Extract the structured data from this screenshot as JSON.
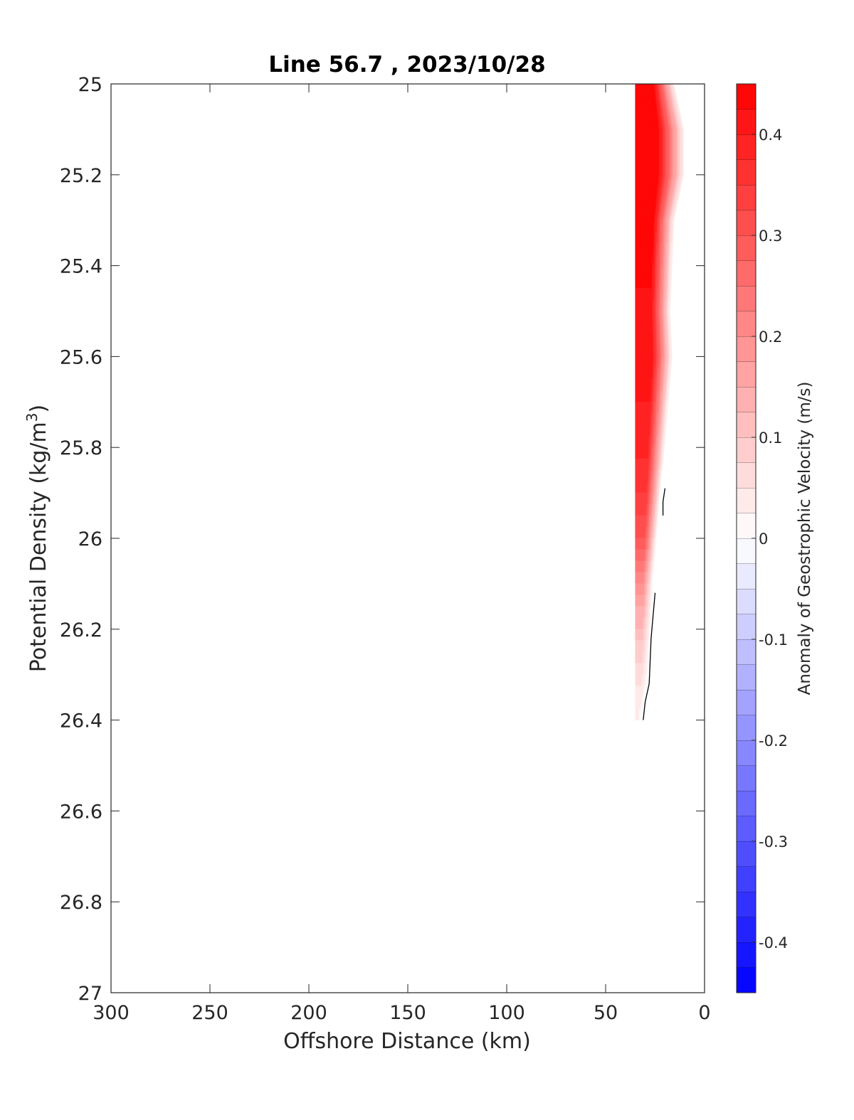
{
  "chart_data": {
    "type": "heatmap",
    "title": "Line 56.7 , 2023/10/28",
    "xlabel": "Offshore Distance (km)",
    "ylabel_main": "Potential Density (kg/m",
    "ylabel_sup": "3",
    "ylabel_close": ")",
    "xlim": [
      300,
      0
    ],
    "x_reversed": true,
    "ylim": [
      25,
      27
    ],
    "y_reversed": true,
    "x_ticks": [
      "300",
      "250",
      "200",
      "150",
      "100",
      "50",
      "0"
    ],
    "x_tick_values": [
      300,
      250,
      200,
      150,
      100,
      50,
      0
    ],
    "y_ticks": [
      "25",
      "25.2",
      "25.4",
      "25.6",
      "25.8",
      "26",
      "26.2",
      "26.4",
      "26.6",
      "26.8",
      "27"
    ],
    "y_tick_values": [
      25,
      25.2,
      25.4,
      25.6,
      25.8,
      26,
      26.2,
      26.4,
      26.6,
      26.8,
      27
    ],
    "colorbar": {
      "label": "Anomaly of Geostrophic Velocity (m/s)",
      "range": [
        -0.45,
        0.45
      ],
      "levels": 36,
      "ticks": [
        "0.4",
        "0.3",
        "0.2",
        "0.1",
        "0",
        "-0.1",
        "-0.2",
        "-0.3",
        "-0.4"
      ],
      "tick_values": [
        0.4,
        0.3,
        0.2,
        0.1,
        0,
        -0.1,
        -0.2,
        -0.3,
        -0.4
      ],
      "colormap": "blue-white-red",
      "max_color": "#ff0000",
      "min_color": "#0000ff",
      "mid_color": "#ffffff"
    },
    "field": {
      "description_free": true,
      "density_levels": [
        25.0,
        25.1,
        25.2,
        25.3,
        25.4,
        25.5,
        25.6,
        25.7,
        25.8,
        25.9,
        26.0,
        26.1,
        26.2,
        26.3,
        26.4
      ],
      "offshore_edge_km": 35,
      "nearshore_edge_km": [
        15,
        10,
        10,
        15,
        16,
        17,
        16,
        18,
        20,
        22,
        24,
        26,
        27,
        28,
        31
      ],
      "max_velocity": [
        0.45,
        0.45,
        0.45,
        0.45,
        0.43,
        0.42,
        0.42,
        0.4,
        0.38,
        0.35,
        0.3,
        0.2,
        0.12,
        0.06,
        0.02
      ],
      "zero_contours": [
        {
          "points": [
            [
              20,
              25.89
            ],
            [
              21,
              25.92
            ],
            [
              21,
              25.95
            ]
          ]
        },
        {
          "points": [
            [
              25,
              26.12
            ],
            [
              27,
              26.22
            ],
            [
              28,
              26.32
            ],
            [
              30,
              26.36
            ],
            [
              31,
              26.4
            ]
          ]
        }
      ]
    }
  }
}
